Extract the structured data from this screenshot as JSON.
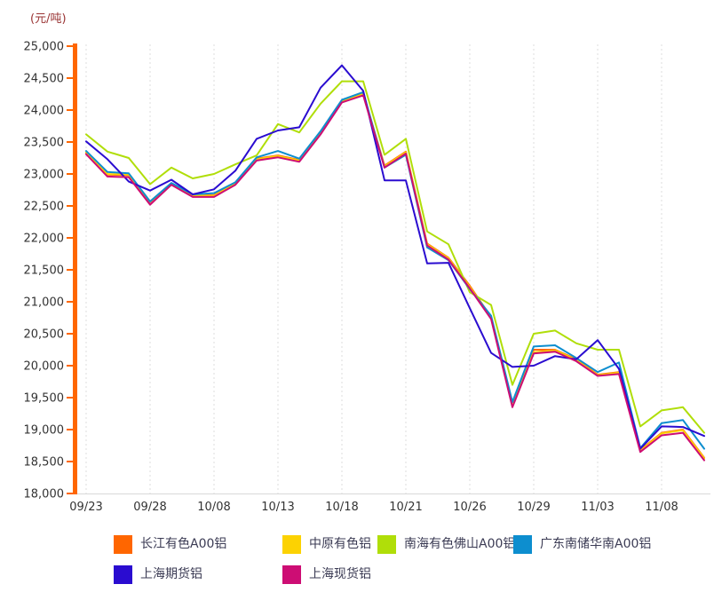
{
  "unit_label": "(元/吨)",
  "colors": {
    "y_axis": "#FF6600",
    "x_axis_line": "#D9D9D9",
    "gridline": "#DDDDDD",
    "tick_text": "#333333",
    "unit_label_text": "#993333",
    "legend_text": "#3B3B54",
    "background": "#FFFFFF"
  },
  "chart_data": {
    "type": "line",
    "title": "(元/吨)",
    "ylabel": "元/吨",
    "xlabel": "",
    "ylim": [
      18000,
      25000
    ],
    "y_tick_step": 500,
    "grid": "vertical-dashed-only",
    "legend_position": "bottom",
    "x_tick_labels": [
      "09/23",
      "09/28",
      "10/08",
      "10/13",
      "10/18",
      "10/21",
      "10/26",
      "10/29",
      "11/03",
      "11/08"
    ],
    "x_tick_indices": [
      0,
      3,
      6,
      9,
      12,
      15,
      18,
      21,
      24,
      27
    ],
    "n_points": 30,
    "series": [
      {
        "name": "长江有色A00铝",
        "color": "#FF6600",
        "values": [
          23330,
          22990,
          22980,
          22560,
          22850,
          22660,
          22670,
          22850,
          23240,
          23290,
          23220,
          23650,
          24150,
          24260,
          23130,
          23350,
          21910,
          21690,
          21250,
          20760,
          19400,
          20250,
          20250,
          20100,
          19860,
          19900,
          18680,
          18950,
          19000,
          18560
        ]
      },
      {
        "name": "中原有色铝",
        "color": "#FCD202",
        "values": [
          23340,
          23000,
          22990,
          22570,
          22850,
          22660,
          22660,
          22850,
          23230,
          23280,
          23210,
          23640,
          24140,
          24250,
          23120,
          23340,
          21900,
          21680,
          21230,
          20750,
          19380,
          20210,
          20240,
          20090,
          19850,
          19890,
          18670,
          18940,
          18990,
          18550
        ]
      },
      {
        "name": "南海有色佛山A00铝",
        "color": "#B0DE09",
        "values": [
          23620,
          23350,
          23250,
          22840,
          23100,
          22930,
          23000,
          23150,
          23290,
          23780,
          23650,
          24100,
          24450,
          24450,
          23300,
          23550,
          22100,
          21900,
          21150,
          20950,
          19700,
          20500,
          20550,
          20350,
          20250,
          20250,
          19050,
          19300,
          19350,
          18950
        ]
      },
      {
        "name": "广东南储华南A00铝",
        "color": "#0D8ECF",
        "values": [
          23360,
          23030,
          23010,
          22570,
          22860,
          22680,
          22700,
          22870,
          23260,
          23360,
          23240,
          23670,
          24160,
          24280,
          23100,
          23300,
          21850,
          21650,
          21200,
          20780,
          19430,
          20300,
          20320,
          20120,
          19900,
          20050,
          18710,
          19100,
          19150,
          18700
        ]
      },
      {
        "name": "上海期货铝",
        "color": "#2A0CD0",
        "values": [
          23510,
          23230,
          22880,
          22740,
          22910,
          22680,
          22760,
          23050,
          23550,
          23680,
          23730,
          24350,
          24700,
          24300,
          22900,
          22900,
          21600,
          21610,
          20900,
          20200,
          19980,
          20000,
          20150,
          20100,
          20400,
          19950,
          18700,
          19050,
          19040,
          18900
        ]
      },
      {
        "name": "上海现货铝",
        "color": "#CD0D74",
        "values": [
          23310,
          22960,
          22950,
          22520,
          22830,
          22640,
          22640,
          22830,
          23210,
          23260,
          23190,
          23620,
          24120,
          24230,
          23100,
          23320,
          21880,
          21660,
          21210,
          20730,
          19350,
          20190,
          20220,
          20070,
          19840,
          19870,
          18650,
          18910,
          18950,
          18520
        ]
      }
    ]
  },
  "legend": {
    "items": [
      "长江有色A00铝",
      "中原有色铝",
      "南海有色佛山A00铝",
      "广东南储华南A00铝",
      "上海期货铝",
      "上海现货铝"
    ]
  }
}
